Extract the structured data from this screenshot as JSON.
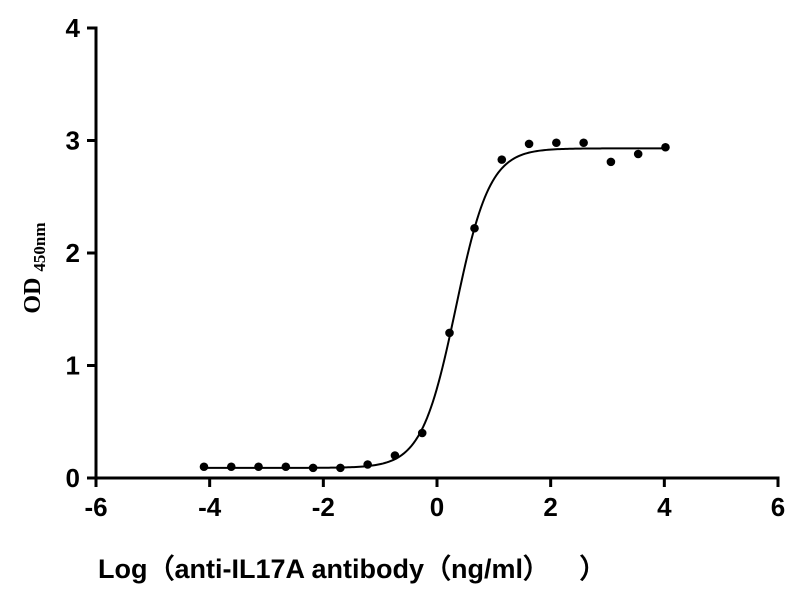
{
  "chart_data": {
    "type": "scatter",
    "title": "",
    "xlabel": "Log（anti-IL17A antibody（ng/ml））",
    "xlabel_parts": {
      "main": "Log（anti-IL17A antibody（ng/ml）",
      "tail": "）"
    },
    "ylabel": "OD450nm",
    "ylabel_parts": {
      "main": "OD",
      "sub": "450nm"
    },
    "xlim": [
      -6,
      6
    ],
    "ylim": [
      0,
      4
    ],
    "x_ticks": [
      -6,
      -4,
      -2,
      0,
      2,
      4,
      6
    ],
    "x_tick_labels": [
      "-6",
      "-4",
      "-2",
      "0",
      "2",
      "4",
      "6"
    ],
    "y_ticks": [
      0,
      1,
      2,
      3,
      4
    ],
    "y_tick_labels": [
      "0",
      "1",
      "2",
      "3",
      "4"
    ],
    "grid": false,
    "legend": "none",
    "series": [
      {
        "points": [
          {
            "x": -4.1,
            "y": 0.1
          },
          {
            "x": -3.62,
            "y": 0.1
          },
          {
            "x": -3.14,
            "y": 0.1
          },
          {
            "x": -2.66,
            "y": 0.1
          },
          {
            "x": -2.18,
            "y": 0.09
          },
          {
            "x": -1.7,
            "y": 0.09
          },
          {
            "x": -1.22,
            "y": 0.12
          },
          {
            "x": -0.74,
            "y": 0.2
          },
          {
            "x": -0.26,
            "y": 0.4
          },
          {
            "x": 0.22,
            "y": 1.29
          },
          {
            "x": 0.66,
            "y": 2.22
          },
          {
            "x": 1.14,
            "y": 2.83
          },
          {
            "x": 1.62,
            "y": 2.97
          },
          {
            "x": 2.1,
            "y": 2.98
          },
          {
            "x": 2.58,
            "y": 2.98
          },
          {
            "x": 3.06,
            "y": 2.81
          },
          {
            "x": 3.54,
            "y": 2.88
          },
          {
            "x": 4.02,
            "y": 2.94
          }
        ],
        "marker_color": "#000000"
      }
    ],
    "fit_curve": {
      "model": "4PL",
      "bottom": 0.09,
      "top": 2.93,
      "log_ec50": 0.33,
      "hill_slope": 1.45,
      "x_range": [
        -4.1,
        4.02
      ],
      "color": "#000000"
    }
  }
}
